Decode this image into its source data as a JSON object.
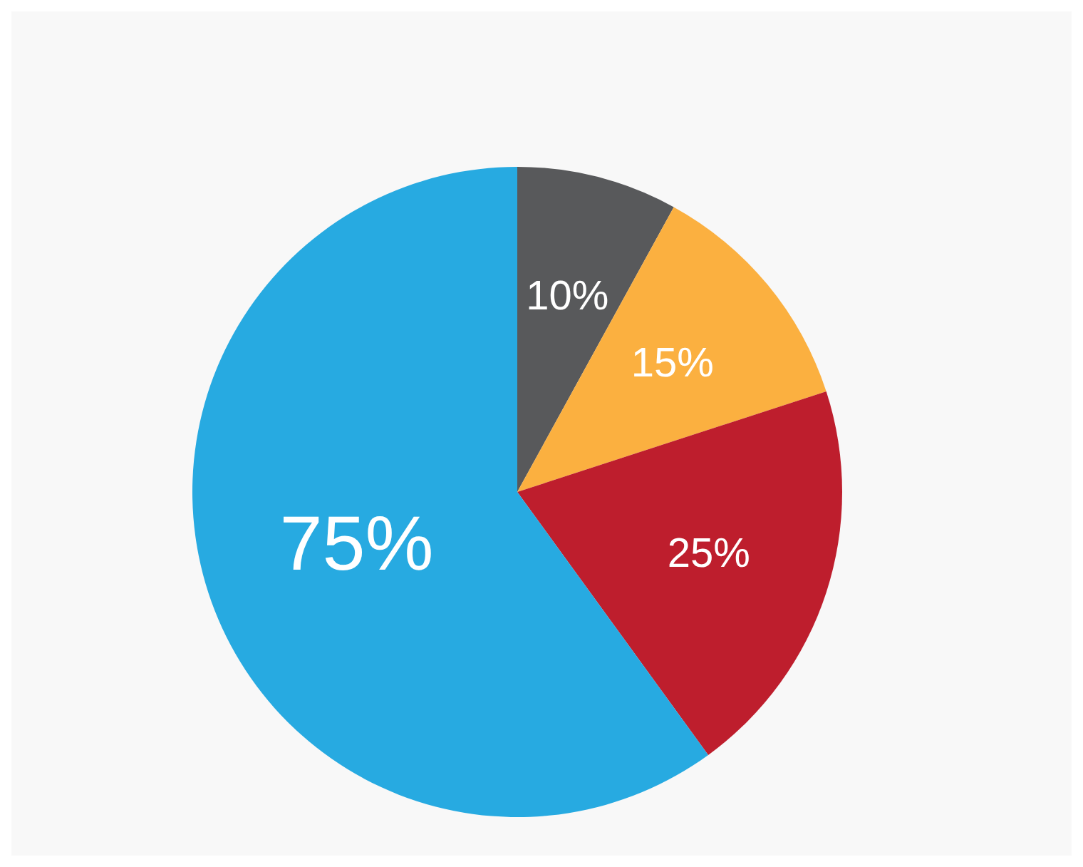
{
  "chart_data": {
    "type": "pie",
    "categories": [
      null,
      null,
      null,
      null
    ],
    "values": [
      10,
      15,
      25,
      75
    ],
    "value_labels": [
      "10%",
      "15%",
      "25%",
      "75%"
    ],
    "colors": [
      "#58595b",
      "#fbb040",
      "#be1e2d",
      "#27aae1"
    ]
  }
}
